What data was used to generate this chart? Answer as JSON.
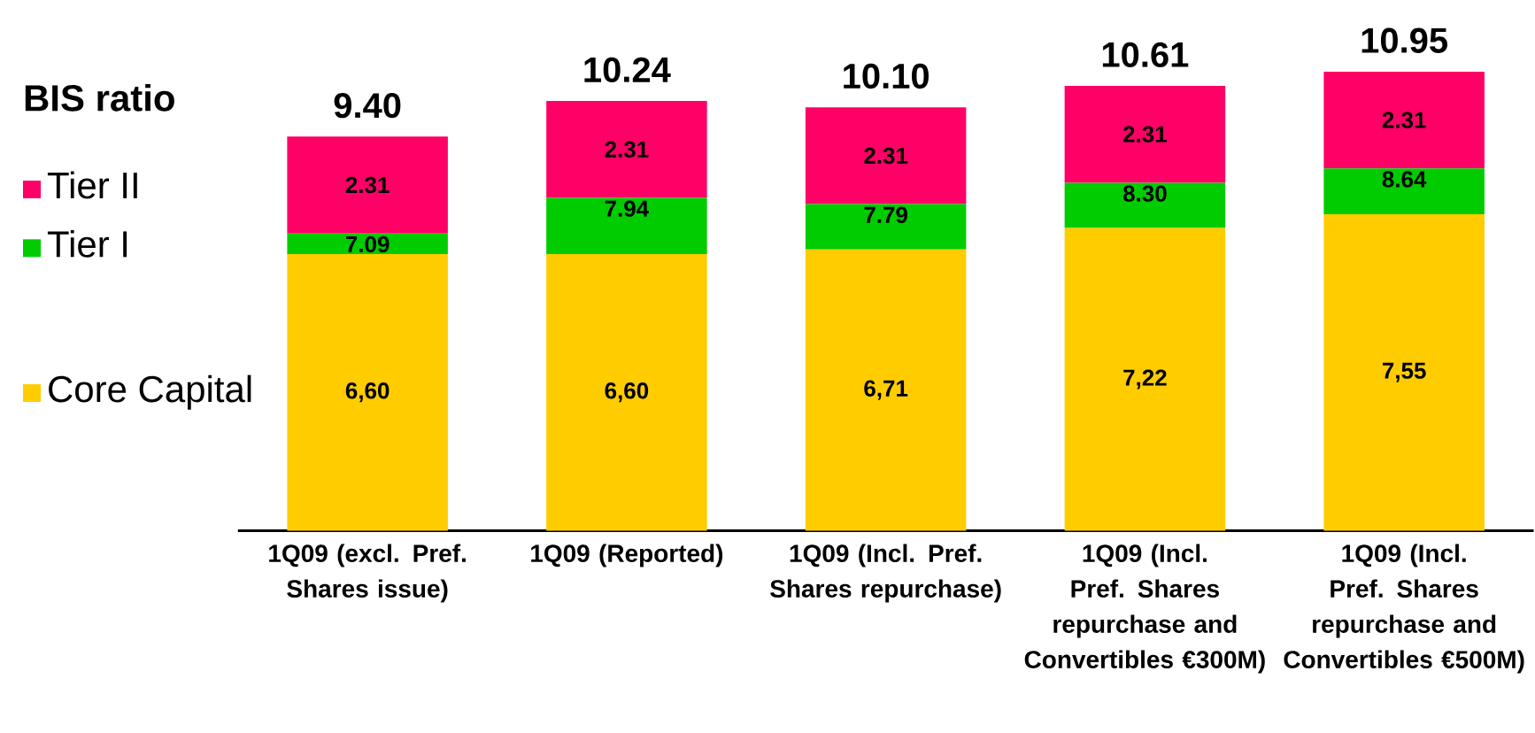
{
  "chart_data": {
    "type": "bar",
    "stacked": true,
    "legend": "left",
    "categories": [
      "1Q09 (excl. Pref. Shares issue)",
      "1Q09 (Reported)",
      "1Q09 (Incl. Pref. Shares repurchase)",
      "1Q09 (Incl. Pref. Shares repurchase and Convertibles €300M)",
      "1Q09 (Incl. Pref. Shares repurchase and Convertibles €500M)"
    ],
    "series": [
      {
        "name": "Core Capital",
        "color": "#ffcc00",
        "values": [
          6.6,
          6.6,
          6.71,
          7.22,
          7.55
        ],
        "value_labels": [
          "6,60",
          "6,60",
          "6,71",
          "7,22",
          "7,55"
        ]
      },
      {
        "name": "Tier I",
        "color": "#00cc00",
        "values": [
          0.49,
          1.34,
          1.08,
          1.08,
          1.09
        ]
      },
      {
        "name": "Tier II",
        "color": "#ff0066",
        "values": [
          2.31,
          2.31,
          2.31,
          2.31,
          2.31
        ],
        "value_labels": [
          "2.31",
          "2.31",
          "2.31",
          "2.31",
          "2.31"
        ]
      }
    ],
    "totals": [
      "9.40",
      "10.24",
      "10.10",
      "10.61",
      "10.95"
    ],
    "annotations": [
      "BIS ratio",
      {
        "text": "7.09",
        "x": "1Q09 (excl. Pref. Shares issue)",
        "y": 7.09
      },
      {
        "text": "7.94",
        "x": "1Q09 (Reported)",
        "y": 7.94
      },
      {
        "text": "7.79",
        "x": "1Q09 (Incl. Pref. Shares repurchase)",
        "y": 7.79
      },
      {
        "text": "8.30",
        "x": "1Q09 (Incl. Pref. Shares repurchase and Convertibles €300M)",
        "y": 8.3
      },
      {
        "text": "8.64",
        "x": "1Q09 (Incl. Pref. Shares repurchase and Convertibles €500M)",
        "y": 8.64
      }
    ]
  }
}
